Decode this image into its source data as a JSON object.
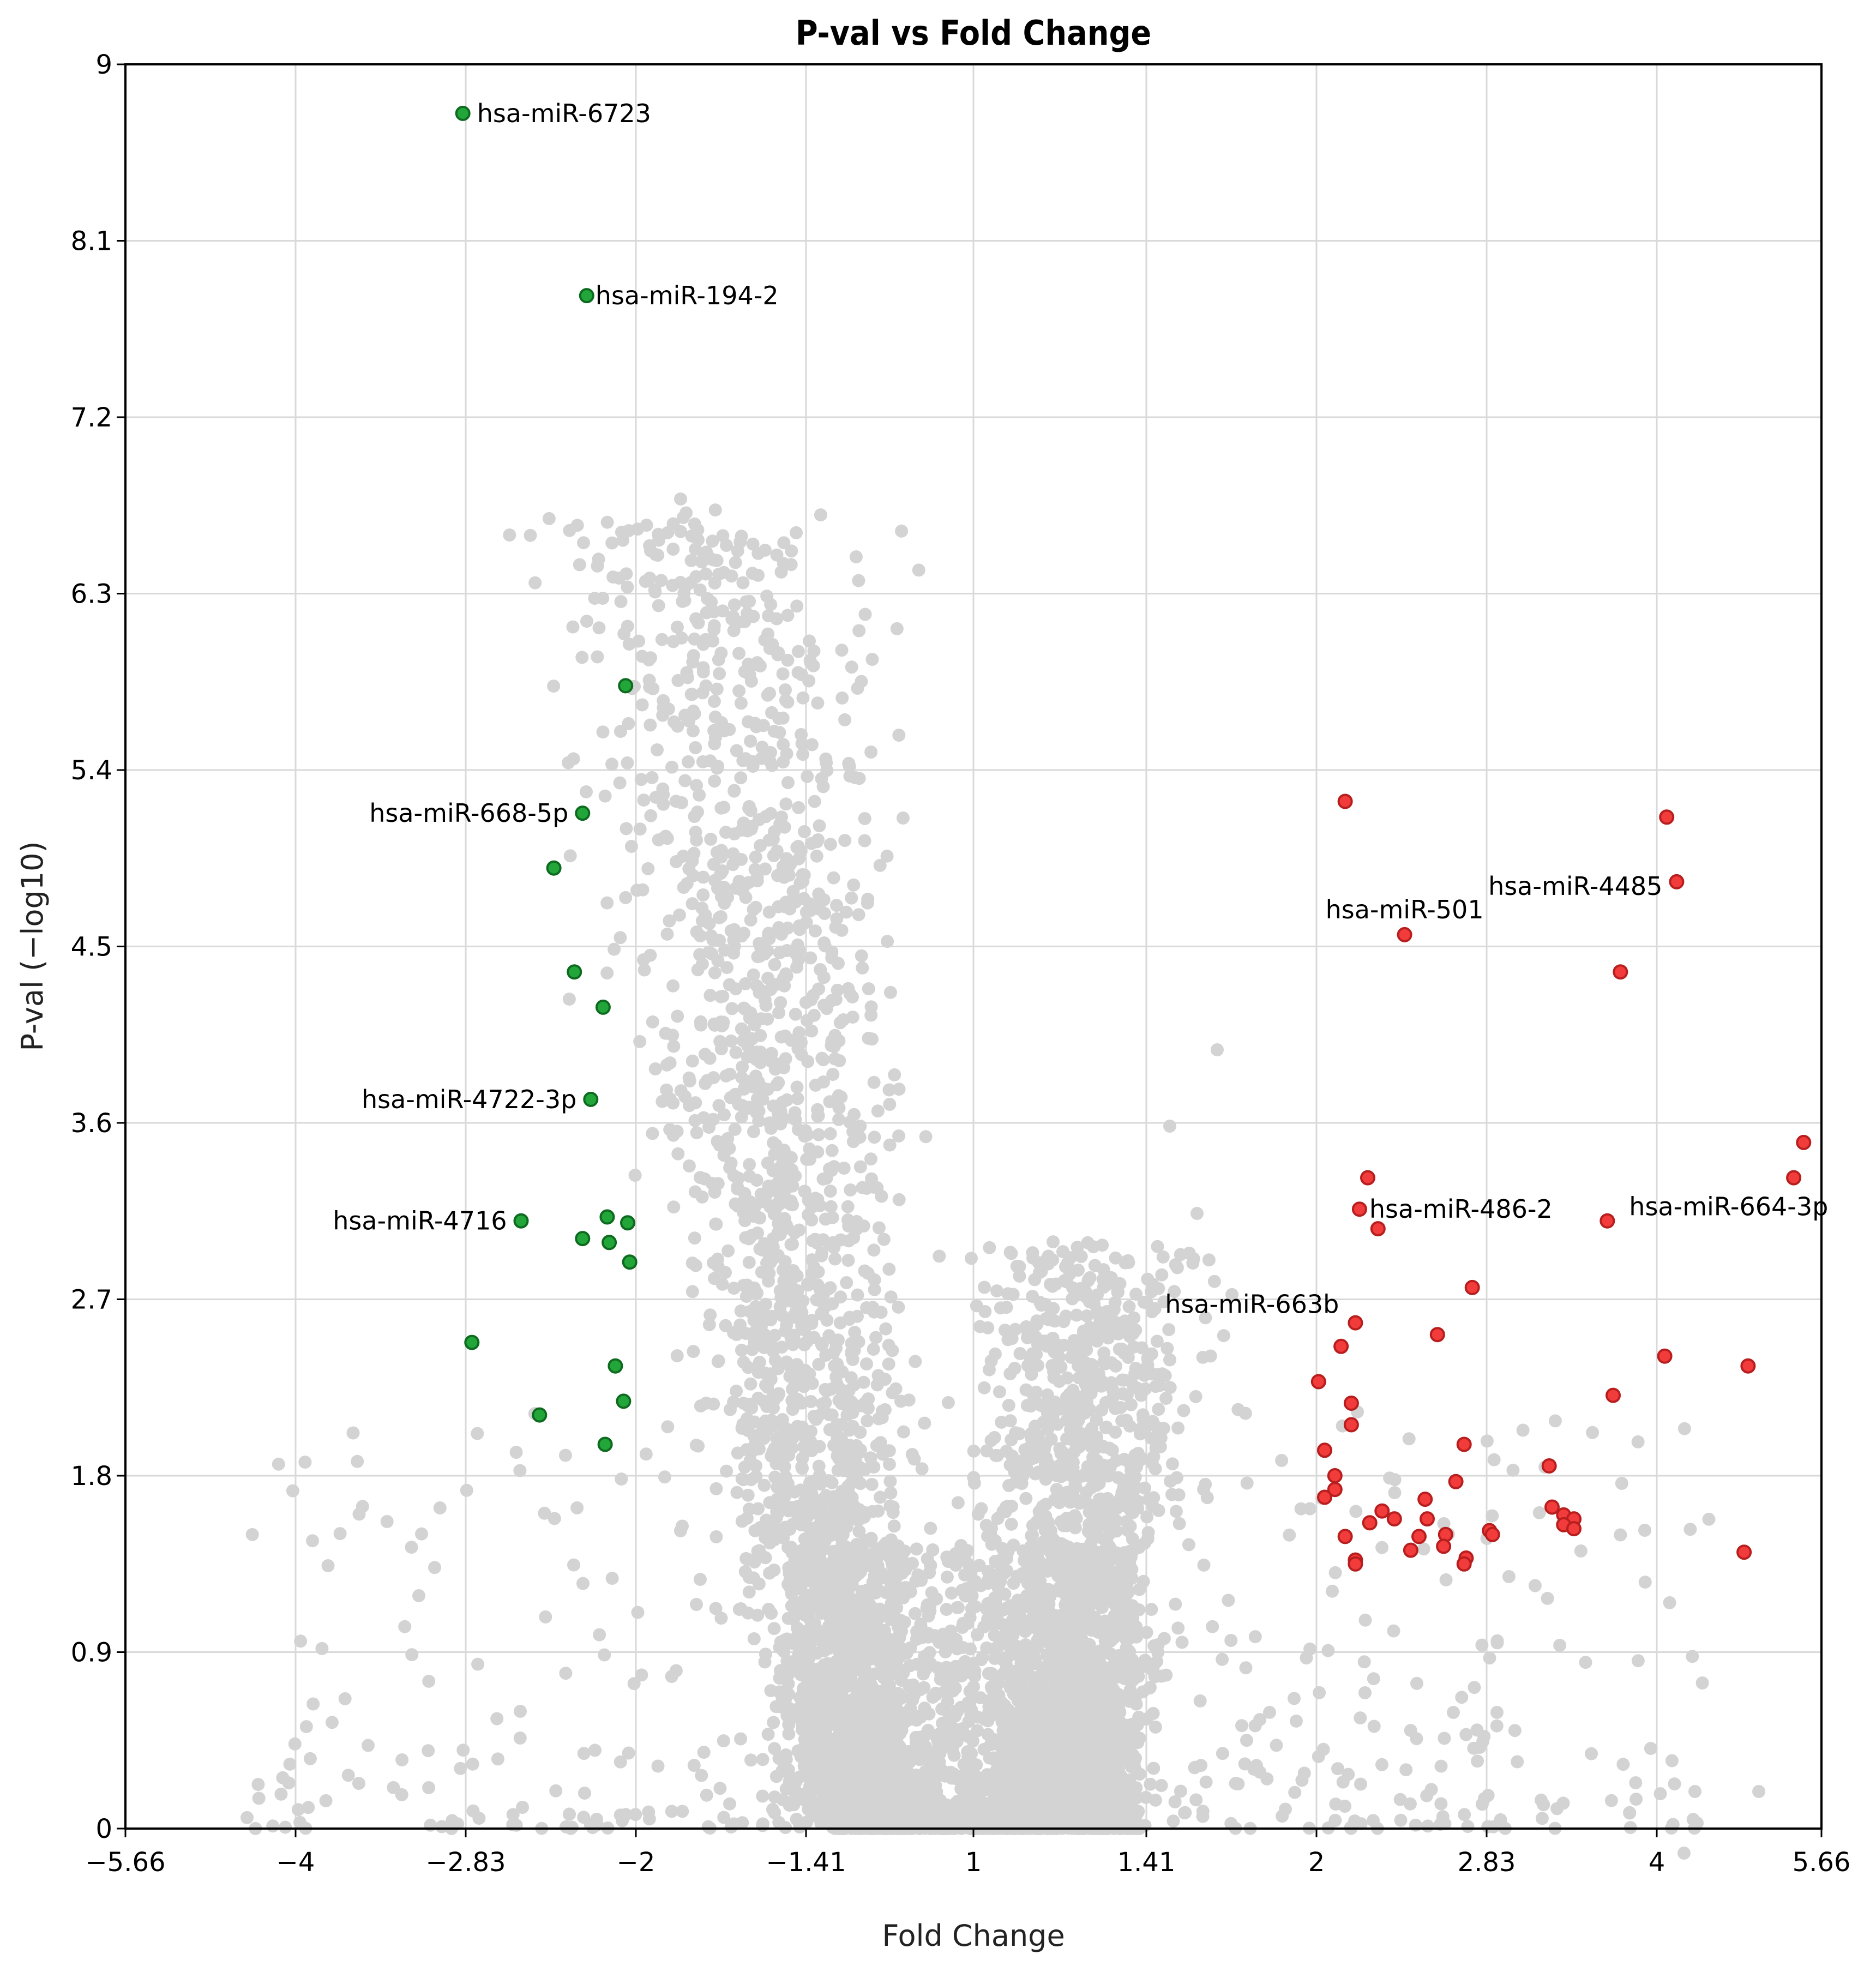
{
  "chart_data": {
    "type": "scatter",
    "title": "P-val vs Fold Change",
    "xlabel": "Fold Change",
    "ylabel": "P-val (−log10)",
    "xlim": [
      -5.66,
      5.66
    ],
    "ylim": [
      0,
      9
    ],
    "x_ticks": [
      {
        "pos": -5.66,
        "label": "−5.66"
      },
      {
        "pos": -4,
        "label": "−4"
      },
      {
        "pos": -2.83,
        "label": "−2.83"
      },
      {
        "pos": -2,
        "label": "−2"
      },
      {
        "pos": -1.41,
        "label": "−1.41"
      },
      {
        "pos": 1,
        "label": "1"
      },
      {
        "pos": 1.41,
        "label": "1.41"
      },
      {
        "pos": 2,
        "label": "2"
      },
      {
        "pos": 2.83,
        "label": "2.83"
      },
      {
        "pos": 4,
        "label": "4"
      },
      {
        "pos": 5.66,
        "label": "5.66"
      }
    ],
    "y_ticks": [
      "0",
      "0.9",
      "1.8",
      "2.7",
      "3.6",
      "4.5",
      "5.4",
      "6.3",
      "7.2",
      "8.1",
      "9"
    ],
    "grid": true,
    "colors": {
      "down": "#22a63a",
      "up": "#f23b3b",
      "ns": "#d3d3d3"
    },
    "series": [
      {
        "group": "down",
        "points": [
          {
            "x": -2.85,
            "y": 8.75,
            "label": "hsa-miR-6723"
          },
          {
            "x": -2.24,
            "y": 7.82,
            "label": "hsa-miR-194-2"
          },
          {
            "x": -2.05,
            "y": 5.83
          },
          {
            "x": -2.26,
            "y": 5.18,
            "label": "hsa-miR-668-5p"
          },
          {
            "x": -2.4,
            "y": 4.9
          },
          {
            "x": -2.3,
            "y": 4.37
          },
          {
            "x": -2.16,
            "y": 4.19
          },
          {
            "x": -2.22,
            "y": 3.72,
            "label": "hsa-miR-4722-3p"
          },
          {
            "x": -2.56,
            "y": 3.1,
            "label": "hsa-miR-4716"
          },
          {
            "x": -2.14,
            "y": 3.12
          },
          {
            "x": -2.04,
            "y": 3.09
          },
          {
            "x": -2.26,
            "y": 3.01
          },
          {
            "x": -2.13,
            "y": 2.99
          },
          {
            "x": -2.03,
            "y": 2.89
          },
          {
            "x": -2.8,
            "y": 2.48
          },
          {
            "x": -2.1,
            "y": 2.36
          },
          {
            "x": -2.06,
            "y": 2.18
          },
          {
            "x": -2.47,
            "y": 2.11
          },
          {
            "x": -2.15,
            "y": 1.96
          }
        ]
      },
      {
        "group": "up",
        "points": [
          {
            "x": 2.14,
            "y": 5.24
          },
          {
            "x": 4.1,
            "y": 5.16
          },
          {
            "x": 4.2,
            "y": 4.83,
            "label": "hsa-miR-4485"
          },
          {
            "x": 2.43,
            "y": 4.56,
            "label": "hsa-miR-501"
          },
          {
            "x": 3.75,
            "y": 4.37
          },
          {
            "x": 5.48,
            "y": 3.5
          },
          {
            "x": 2.25,
            "y": 3.32
          },
          {
            "x": 5.38,
            "y": 3.32
          },
          {
            "x": 2.21,
            "y": 3.16,
            "label": "hsa-miR-486-2"
          },
          {
            "x": 3.66,
            "y": 3.1,
            "label": "hsa-miR-664-3p"
          },
          {
            "x": 2.3,
            "y": 3.06
          },
          {
            "x": 2.76,
            "y": 2.76
          },
          {
            "x": 2.19,
            "y": 2.58,
            "label": "hsa-miR-663b"
          },
          {
            "x": 2.59,
            "y": 2.52
          },
          {
            "x": 2.12,
            "y": 2.46
          },
          {
            "x": 4.08,
            "y": 2.41
          },
          {
            "x": 4.92,
            "y": 2.36
          },
          {
            "x": 2.01,
            "y": 2.28
          },
          {
            "x": 3.7,
            "y": 2.21
          },
          {
            "x": 2.17,
            "y": 2.17
          },
          {
            "x": 2.17,
            "y": 2.06
          },
          {
            "x": 2.72,
            "y": 1.96
          },
          {
            "x": 2.04,
            "y": 1.93
          },
          {
            "x": 3.26,
            "y": 1.85
          },
          {
            "x": 2.09,
            "y": 1.8
          },
          {
            "x": 2.68,
            "y": 1.77
          },
          {
            "x": 2.09,
            "y": 1.73
          },
          {
            "x": 2.04,
            "y": 1.69
          },
          {
            "x": 2.53,
            "y": 1.68
          },
          {
            "x": 3.28,
            "y": 1.64
          },
          {
            "x": 2.32,
            "y": 1.62
          },
          {
            "x": 3.36,
            "y": 1.6
          },
          {
            "x": 3.43,
            "y": 1.58
          },
          {
            "x": 2.38,
            "y": 1.58
          },
          {
            "x": 2.54,
            "y": 1.58
          },
          {
            "x": 2.26,
            "y": 1.56
          },
          {
            "x": 3.36,
            "y": 1.55
          },
          {
            "x": 3.43,
            "y": 1.53
          },
          {
            "x": 2.85,
            "y": 1.52
          },
          {
            "x": 2.63,
            "y": 1.5
          },
          {
            "x": 2.5,
            "y": 1.49
          },
          {
            "x": 2.87,
            "y": 1.5
          },
          {
            "x": 2.14,
            "y": 1.49
          },
          {
            "x": 2.62,
            "y": 1.44
          },
          {
            "x": 2.46,
            "y": 1.42
          },
          {
            "x": 4.88,
            "y": 1.41
          },
          {
            "x": 2.73,
            "y": 1.38
          },
          {
            "x": 2.19,
            "y": 1.37
          },
          {
            "x": 2.72,
            "y": 1.35
          },
          {
            "x": 2.19,
            "y": 1.35
          }
        ]
      }
    ]
  }
}
